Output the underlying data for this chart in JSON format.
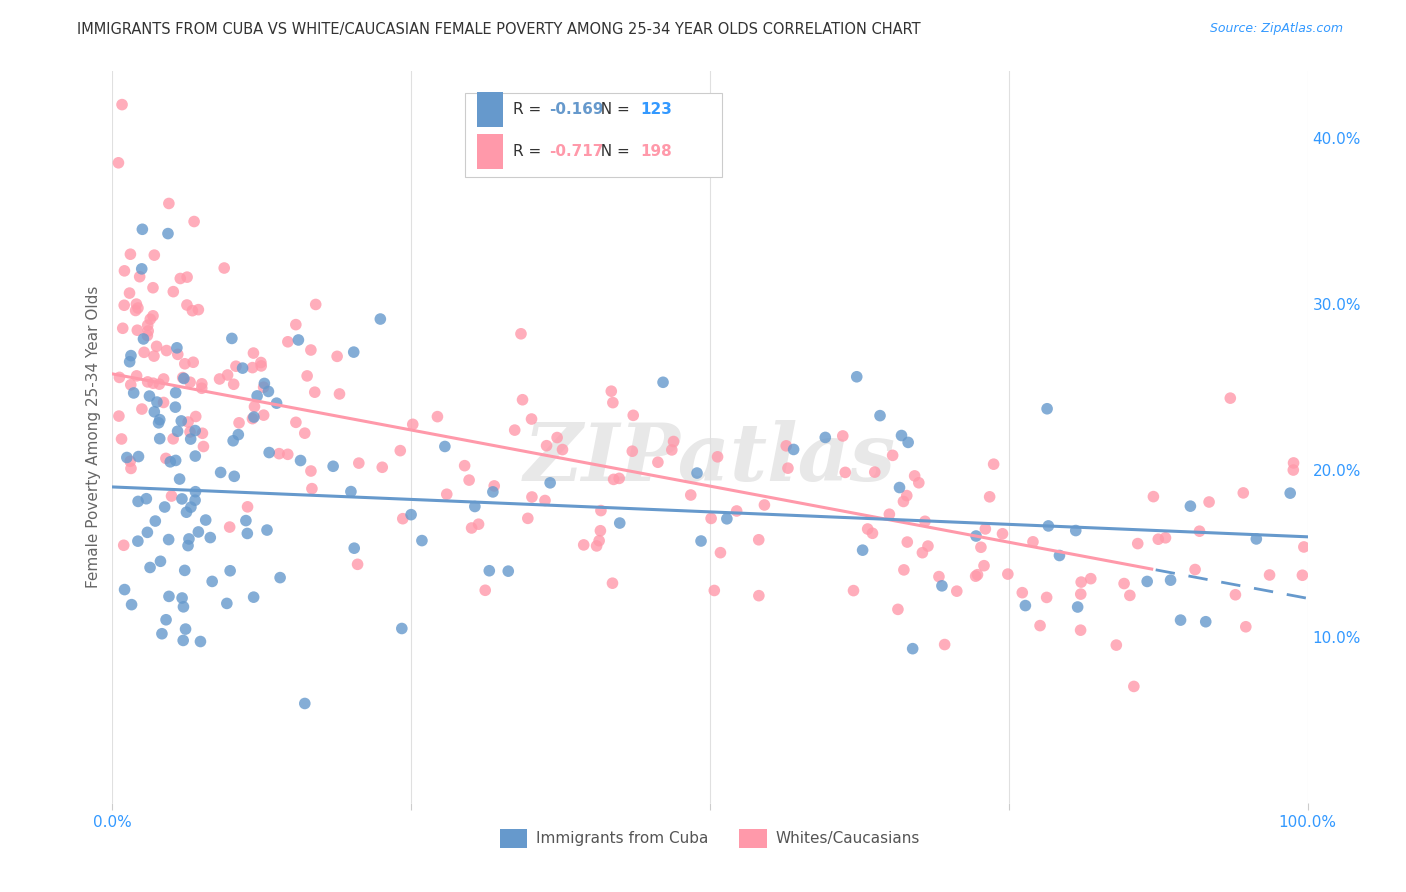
{
  "title": "IMMIGRANTS FROM CUBA VS WHITE/CAUCASIAN FEMALE POVERTY AMONG 25-34 YEAR OLDS CORRELATION CHART",
  "source": "Source: ZipAtlas.com",
  "ylabel": "Female Poverty Among 25-34 Year Olds",
  "xlim": [
    0,
    1.0
  ],
  "ylim": [
    0.0,
    0.44
  ],
  "ytick_positions": [
    0.1,
    0.2,
    0.3,
    0.4
  ],
  "ytick_labels": [
    "10.0%",
    "20.0%",
    "30.0%",
    "40.0%"
  ],
  "xtick_positions": [
    0.0,
    0.25,
    0.5,
    0.75,
    1.0
  ],
  "xtick_labels": [
    "0.0%",
    "",
    "",
    "",
    "100.0%"
  ],
  "cuba_color": "#6699cc",
  "white_color": "#ff99aa",
  "tick_label_color": "#3399ff",
  "title_color": "#333333",
  "ylabel_color": "#666666",
  "source_color": "#3399ff",
  "grid_color": "#e0e0e0",
  "legend_label_cuba": "Immigrants from Cuba",
  "legend_label_white": "Whites/Caucasians",
  "watermark": "ZIPatlas",
  "cuba_R": -0.169,
  "cuba_N": 123,
  "white_R": -0.717,
  "white_N": 198,
  "background_color": "#ffffff"
}
